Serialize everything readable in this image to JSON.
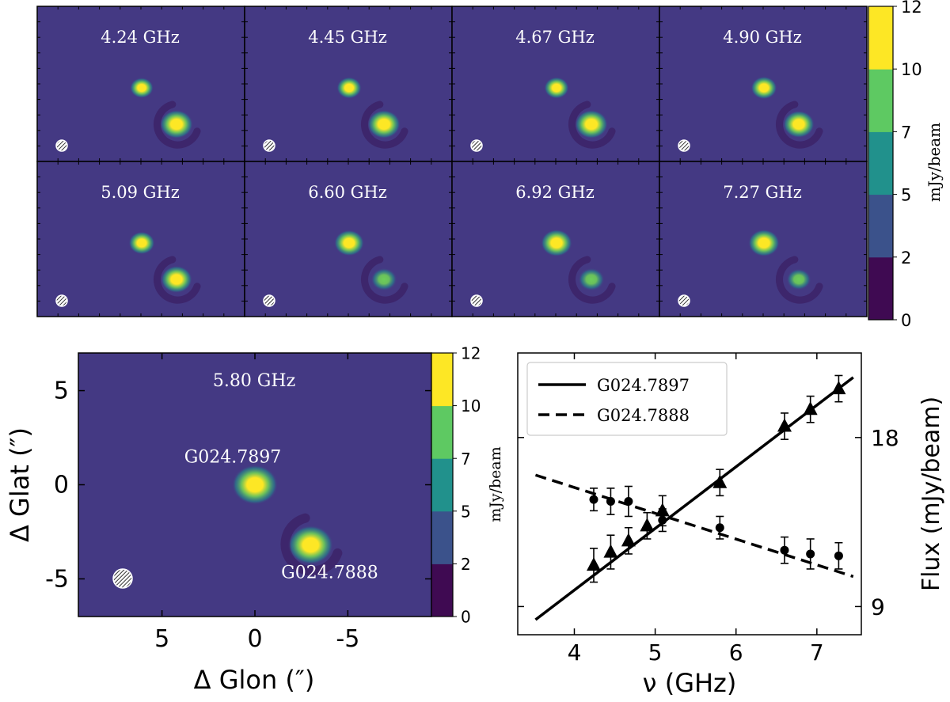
{
  "colors": {
    "background": "#443983",
    "colorbar": [
      "#3f0a52",
      "#3b528b",
      "#21918c",
      "#5ec962",
      "#fde725"
    ],
    "blob_core": "#fde725",
    "blob_mid": "#6ece58",
    "blob_outer": "#21918c",
    "dark_arc": "#3b1e63",
    "axes": "#000000",
    "label": "#ffffff"
  },
  "channel_panels": [
    {
      "label": "4.24 GHz",
      "src1_peak": 9,
      "src2_peak": 10
    },
    {
      "label": "4.45 GHz",
      "src1_peak": 9.5,
      "src2_peak": 10
    },
    {
      "label": "4.67 GHz",
      "src1_peak": 9.5,
      "src2_peak": 10
    },
    {
      "label": "4.90 GHz",
      "src1_peak": 10,
      "src2_peak": 9.5
    },
    {
      "label": "5.09 GHz",
      "src1_peak": 10,
      "src2_peak": 9.5
    },
    {
      "label": "6.60 GHz",
      "src1_peak": 11.5,
      "src2_peak": 8
    },
    {
      "label": "6.92 GHz",
      "src1_peak": 12,
      "src2_peak": 8
    },
    {
      "label": "7.27 GHz",
      "src1_peak": 12,
      "src2_peak": 7.5
    }
  ],
  "chart_data": [
    {
      "type": "heatmap",
      "name": "channel maps",
      "colorbar": {
        "label": "mJy/beam",
        "ticks": [
          "0",
          "2",
          "5",
          "7",
          "10",
          "12"
        ],
        "range": [
          0,
          12
        ]
      }
    },
    {
      "type": "heatmap",
      "name": "continuum map",
      "title": "5.80 GHz",
      "xlabel": "Δ Glon (″)",
      "ylabel": "Δ Glat (″)",
      "xlim": [
        9.5,
        -9.5
      ],
      "ylim": [
        -7,
        7
      ],
      "xticks": [
        "5",
        "0",
        "-5"
      ],
      "yticks": [
        "5",
        "0",
        "-5"
      ],
      "colorbar": {
        "label": "mJy/beam",
        "ticks": [
          "0",
          "2",
          "5",
          "7",
          "10",
          "12"
        ],
        "range": [
          0,
          12
        ]
      },
      "sources": [
        {
          "name": "G024.7897",
          "x": 0,
          "y": 0,
          "peak": 12
        },
        {
          "name": "G024.7888",
          "x": -3,
          "y": -3.2,
          "peak": 10
        }
      ]
    },
    {
      "type": "line",
      "name": "flux vs frequency",
      "xlabel": "ν (GHz)",
      "ylabel": "Flux (mJy/beam)",
      "xlim": [
        3.3,
        7.55
      ],
      "ylim": [
        7.5,
        22.5
      ],
      "xticks": [
        "4",
        "5",
        "6",
        "7"
      ],
      "yticks": [
        "9",
        "18"
      ],
      "legend": {
        "position": "top-left",
        "entries": [
          "G024.7897",
          "G024.7888"
        ]
      },
      "series": [
        {
          "name": "G024.7897",
          "marker": "triangle",
          "line": "solid",
          "x": [
            4.24,
            4.45,
            4.67,
            4.9,
            5.09,
            5.8,
            6.6,
            6.92,
            7.27
          ],
          "y": [
            11.2,
            11.9,
            12.5,
            13.3,
            14.1,
            15.6,
            18.6,
            19.5,
            20.6
          ],
          "err": [
            0.9,
            0.9,
            0.7,
            0.7,
            0.8,
            0.7,
            0.7,
            0.7,
            0.7
          ],
          "fit": {
            "x": [
              3.52,
              7.45
            ],
            "y": [
              8.3,
              21.2
            ]
          }
        },
        {
          "name": "G024.7888",
          "marker": "circle",
          "line": "dashed",
          "x": [
            4.24,
            4.45,
            4.67,
            5.09,
            5.8,
            6.6,
            6.92,
            7.27
          ],
          "y": [
            14.7,
            14.6,
            14.6,
            13.6,
            13.2,
            12.0,
            11.8,
            11.7
          ],
          "err": [
            0.6,
            0.7,
            0.8,
            0.6,
            0.6,
            0.7,
            0.8,
            0.7
          ],
          "fit": {
            "x": [
              3.52,
              7.45
            ],
            "y": [
              16.0,
              10.6
            ]
          }
        }
      ]
    }
  ]
}
